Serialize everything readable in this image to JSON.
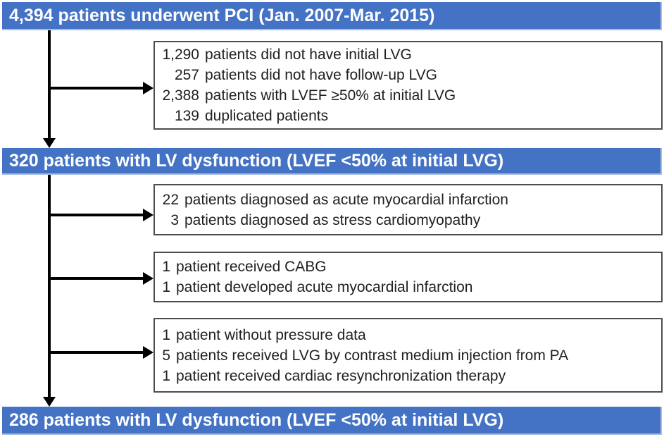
{
  "colors": {
    "bar_background": "#4472C4",
    "bar_light_edge": "#AABDE2",
    "bar_text": "#FFFFFF",
    "box_border": "#4D4D4D",
    "box_text": "#1F1F1F",
    "arrow": "#000000"
  },
  "flow": {
    "bar1": {
      "text": "4,394 patients underwent PCI (Jan. 2007-Mar. 2015)"
    },
    "box1": {
      "lines": [
        {
          "num": "1,290",
          "text": "patients did not have initial LVG"
        },
        {
          "num": "257",
          "text": "patients did not have follow-up LVG"
        },
        {
          "num": "2,388",
          "text": "patients with LVEF ≥50% at initial LVG"
        },
        {
          "num": "139",
          "text": "duplicated patients"
        }
      ]
    },
    "bar2": {
      "text": "320 patients with LV dysfunction (LVEF <50% at initial LVG)"
    },
    "box2": {
      "lines": [
        {
          "num": "22",
          "text": "patients diagnosed as acute myocardial infarction"
        },
        {
          "num": "3",
          "text": "patients diagnosed as stress cardiomyopathy"
        }
      ]
    },
    "box3": {
      "lines": [
        {
          "num": "1",
          "text": "patient received CABG"
        },
        {
          "num": "1",
          "text": "patient developed acute myocardial infarction"
        }
      ]
    },
    "box4": {
      "lines": [
        {
          "num": "1",
          "text": "patient without pressure data"
        },
        {
          "num": "5",
          "text": "patients received LVG by contrast medium injection from PA"
        },
        {
          "num": "1",
          "text": "patient received cardiac resynchronization therapy"
        }
      ]
    },
    "bar3": {
      "text": "286 patients with LV dysfunction (LVEF <50% at initial LVG)"
    }
  }
}
